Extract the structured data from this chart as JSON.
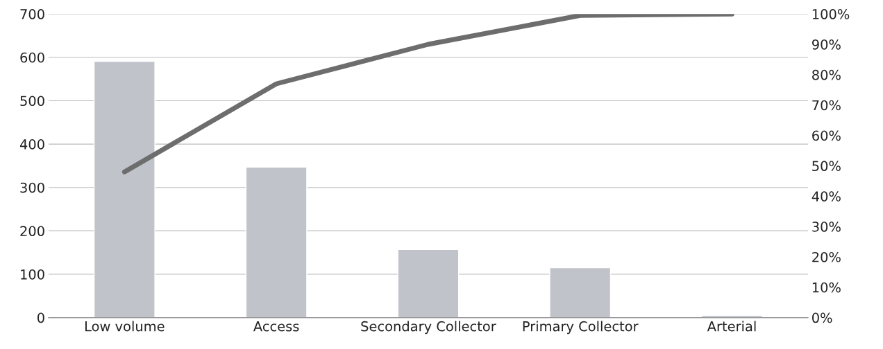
{
  "chart_data": {
    "type": "bar",
    "categories": [
      "Low volume",
      "Access",
      "Secondary Collector",
      "Primary Collector",
      "Arterial"
    ],
    "series": [
      {
        "color": "#c0c3ca",
        "values": [
          591,
          347,
          157,
          115,
          5
        ]
      },
      {
        "type": "line",
        "axis": "y2",
        "color": "#6d6d6d",
        "values": [
          48,
          77,
          90,
          99.5,
          100
        ]
      }
    ],
    "ylim": [
      0,
      700
    ],
    "yticks": [
      0,
      100,
      200,
      300,
      400,
      500,
      600,
      700
    ],
    "y2lim": [
      0,
      100
    ],
    "y2ticks": [
      {
        "value": 0,
        "label": "0%"
      },
      {
        "value": 10,
        "label": "10%"
      },
      {
        "value": 20,
        "label": "20%"
      },
      {
        "value": 30,
        "label": "30%"
      },
      {
        "value": 40,
        "label": "40%"
      },
      {
        "value": 50,
        "label": "50%"
      },
      {
        "value": 60,
        "label": "60%"
      },
      {
        "value": 70,
        "label": "70%"
      },
      {
        "value": 80,
        "label": "80%"
      },
      {
        "value": 90,
        "label": "90%"
      },
      {
        "value": 100,
        "label": "100%"
      }
    ],
    "grid": "y",
    "marker": "none",
    "line_style": "solid"
  }
}
